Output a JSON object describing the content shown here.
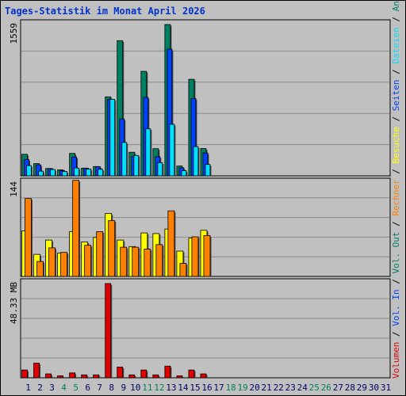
{
  "title": "Tages-Statistik im Monat April 2026",
  "colors": {
    "background": "#c0c0c0",
    "border": "#000000",
    "title": "#0033cc",
    "grid": "#8a8a8a",
    "weekday_label": "#000066",
    "weekend_label": "#008060",
    "anfragen": "#008060",
    "seiten": "#0040ff",
    "dateien": "#00e0ff",
    "besuche": "#ffff00",
    "rechner": "#ff8000",
    "vol_out": "#008060",
    "vol_in": "#0040ff",
    "volumen": "#e00000"
  },
  "chart_data": [
    {
      "type": "bar",
      "axis_max_label": "1559",
      "ylim": [
        0,
        1559
      ],
      "grid": true,
      "categories": [
        "1",
        "2",
        "3",
        "4",
        "5",
        "6",
        "7",
        "8",
        "9",
        "10",
        "11",
        "12",
        "13",
        "14",
        "15",
        "16",
        "17",
        "18",
        "19",
        "20",
        "21",
        "22",
        "23",
        "24",
        "25",
        "26",
        "27",
        "28",
        "29",
        "30",
        "31"
      ],
      "series": [
        {
          "name": "Anfragen",
          "color_key": "anfragen",
          "values": [
            222,
            126,
            76,
            62,
            231,
            79,
            96,
            814,
            1393,
            243,
            1077,
            280,
            1559,
            101,
            995,
            281,
            0,
            0,
            0,
            0,
            0,
            0,
            0,
            0,
            0,
            0,
            0,
            0,
            0,
            0,
            0
          ]
        },
        {
          "name": "Seiten",
          "color_key": "seiten",
          "values": [
            168,
            113,
            74,
            55,
            194,
            79,
            93,
            789,
            586,
            201,
            809,
            197,
            1306,
            82,
            797,
            236,
            0,
            0,
            0,
            0,
            0,
            0,
            0,
            0,
            0,
            0,
            0,
            0,
            0,
            0,
            0
          ]
        },
        {
          "name": "Dateien",
          "color_key": "dateien",
          "values": [
            106,
            48,
            65,
            45,
            80,
            69,
            67,
            789,
            344,
            210,
            484,
            135,
            531,
            53,
            301,
            117,
            0,
            0,
            0,
            0,
            0,
            0,
            0,
            0,
            0,
            0,
            0,
            0,
            0,
            0,
            0
          ]
        }
      ]
    },
    {
      "type": "bar",
      "axis_max_label": "144",
      "ylim": [
        0,
        144
      ],
      "grid": true,
      "categories": [
        "1",
        "2",
        "3",
        "4",
        "5",
        "6",
        "7",
        "8",
        "9",
        "10",
        "11",
        "12",
        "13",
        "14",
        "15",
        "16",
        "17",
        "18",
        "19",
        "20",
        "21",
        "22",
        "23",
        "24",
        "25",
        "26",
        "27",
        "28",
        "29",
        "30",
        "31"
      ],
      "series": [
        {
          "name": "Besuche",
          "color_key": "besuche",
          "values": [
            70,
            34,
            56,
            36,
            69,
            53,
            60,
            97,
            56,
            46,
            67,
            66,
            73,
            39,
            59,
            71,
            0,
            0,
            0,
            0,
            0,
            0,
            0,
            0,
            0,
            0,
            0,
            0,
            0,
            0,
            0
          ]
        },
        {
          "name": "Rechner",
          "color_key": "rechner",
          "values": [
            120,
            23,
            44,
            37,
            148,
            48,
            69,
            86,
            45,
            45,
            42,
            49,
            101,
            20,
            61,
            63,
            0,
            0,
            0,
            0,
            0,
            0,
            0,
            0,
            0,
            0,
            0,
            0,
            0,
            0,
            0
          ]
        }
      ]
    },
    {
      "type": "bar",
      "axis_max_label": "48.33 MB",
      "ylim": [
        0,
        48.33
      ],
      "grid": true,
      "categories": [
        "1",
        "2",
        "3",
        "4",
        "5",
        "6",
        "7",
        "8",
        "9",
        "10",
        "11",
        "12",
        "13",
        "14",
        "15",
        "16",
        "17",
        "18",
        "19",
        "20",
        "21",
        "22",
        "23",
        "24",
        "25",
        "26",
        "27",
        "28",
        "29",
        "30",
        "31"
      ],
      "series": [
        {
          "name": "Volumen",
          "color_key": "volumen",
          "values": [
            4.0,
            7.5,
            2.0,
            1.0,
            2.5,
            1.5,
            1.5,
            48.33,
            5.5,
            1.5,
            4.0,
            1.5,
            6.0,
            1.0,
            4.0,
            2.0,
            0,
            0,
            0,
            0,
            0,
            0,
            0,
            0,
            0,
            0,
            0,
            0,
            0,
            0,
            0
          ]
        }
      ]
    }
  ],
  "weekend_days": [
    "4",
    "5",
    "11",
    "12",
    "18",
    "19",
    "25",
    "26"
  ],
  "legend_right": [
    {
      "text": "Anfragen",
      "color_key": "anfragen"
    },
    {
      "text": "Dateien",
      "color_key": "dateien"
    },
    {
      "text": "Seiten",
      "color_key": "seiten"
    },
    {
      "text": "Besuche",
      "color_key": "besuche"
    },
    {
      "text": "Rechner",
      "color_key": "rechner"
    },
    {
      "text": "Vol. Out",
      "color_key": "vol_out"
    },
    {
      "text": "Vol. In",
      "color_key": "vol_in"
    },
    {
      "text": "Volumen",
      "color_key": "volumen"
    }
  ],
  "legend_separator": " / "
}
